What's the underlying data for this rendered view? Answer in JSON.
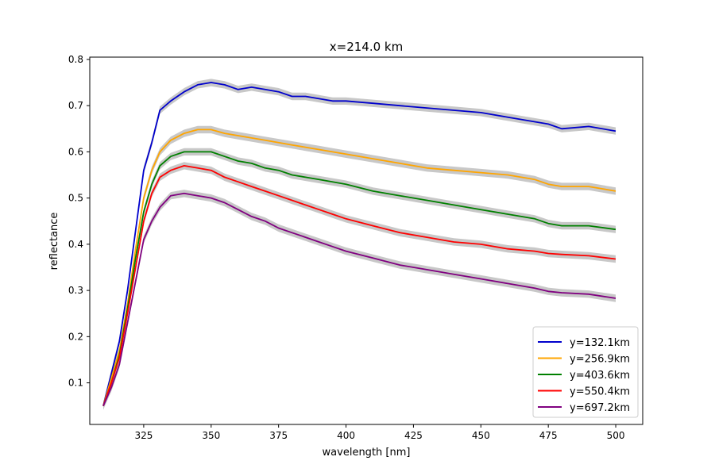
{
  "chart_data": {
    "type": "line",
    "title": "x=214.0 km",
    "xlabel": "wavelength [nm]",
    "ylabel": "reflectance",
    "xlim": [
      305,
      510
    ],
    "ylim": [
      0.01,
      0.805
    ],
    "x_ticks": [
      325,
      350,
      375,
      400,
      425,
      450,
      475,
      500
    ],
    "y_ticks": [
      0.1,
      0.2,
      0.3,
      0.4,
      0.5,
      0.6,
      0.7,
      0.8
    ],
    "x_tick_labels": [
      "325",
      "350",
      "375",
      "400",
      "425",
      "450",
      "475",
      "500"
    ],
    "y_tick_labels": [
      "0.1",
      "0.2",
      "0.3",
      "0.4",
      "0.5",
      "0.6",
      "0.7",
      "0.8"
    ],
    "grid": false,
    "legend_position": "lower-right",
    "uncertainty_band_color": "#c8c8c8",
    "series": [
      {
        "name": "y=132.1km",
        "color": "#0000cc",
        "x": [
          310,
          313,
          316,
          319,
          322,
          325,
          328,
          331,
          335,
          340,
          345,
          350,
          355,
          360,
          365,
          370,
          375,
          380,
          385,
          390,
          395,
          400,
          410,
          420,
          430,
          440,
          450,
          460,
          470,
          475,
          480,
          490,
          500
        ],
        "y": [
          0.05,
          0.12,
          0.19,
          0.3,
          0.43,
          0.56,
          0.62,
          0.69,
          0.71,
          0.73,
          0.745,
          0.75,
          0.745,
          0.735,
          0.74,
          0.735,
          0.73,
          0.72,
          0.72,
          0.715,
          0.71,
          0.71,
          0.705,
          0.7,
          0.695,
          0.69,
          0.685,
          0.675,
          0.665,
          0.66,
          0.65,
          0.655,
          0.645
        ]
      },
      {
        "name": "y=256.9km",
        "color": "#ffa500",
        "x": [
          310,
          313,
          316,
          319,
          322,
          325,
          328,
          331,
          335,
          340,
          345,
          350,
          355,
          360,
          365,
          370,
          375,
          380,
          385,
          390,
          395,
          400,
          410,
          420,
          430,
          440,
          450,
          460,
          470,
          475,
          480,
          490,
          500
        ],
        "y": [
          0.05,
          0.11,
          0.17,
          0.27,
          0.39,
          0.5,
          0.56,
          0.6,
          0.625,
          0.64,
          0.648,
          0.648,
          0.64,
          0.635,
          0.63,
          0.625,
          0.62,
          0.615,
          0.61,
          0.605,
          0.6,
          0.595,
          0.585,
          0.575,
          0.565,
          0.56,
          0.555,
          0.55,
          0.54,
          0.53,
          0.525,
          0.525,
          0.515
        ]
      },
      {
        "name": "y=403.6km",
        "color": "#008000",
        "x": [
          310,
          313,
          316,
          319,
          322,
          325,
          328,
          331,
          335,
          340,
          345,
          350,
          355,
          360,
          365,
          370,
          375,
          380,
          385,
          390,
          395,
          400,
          410,
          420,
          430,
          440,
          450,
          460,
          470,
          475,
          480,
          490,
          500
        ],
        "y": [
          0.05,
          0.1,
          0.16,
          0.26,
          0.37,
          0.47,
          0.53,
          0.57,
          0.59,
          0.6,
          0.6,
          0.6,
          0.59,
          0.58,
          0.575,
          0.565,
          0.56,
          0.55,
          0.545,
          0.54,
          0.535,
          0.53,
          0.515,
          0.505,
          0.495,
          0.485,
          0.475,
          0.465,
          0.455,
          0.445,
          0.44,
          0.44,
          0.432
        ]
      },
      {
        "name": "y=550.4km",
        "color": "#ff0000",
        "x": [
          310,
          313,
          316,
          319,
          322,
          325,
          328,
          331,
          335,
          340,
          345,
          350,
          355,
          360,
          365,
          370,
          375,
          380,
          385,
          390,
          395,
          400,
          410,
          420,
          430,
          440,
          450,
          460,
          470,
          475,
          480,
          490,
          500
        ],
        "y": [
          0.05,
          0.1,
          0.155,
          0.25,
          0.35,
          0.45,
          0.51,
          0.545,
          0.56,
          0.57,
          0.565,
          0.56,
          0.545,
          0.535,
          0.525,
          0.515,
          0.505,
          0.495,
          0.485,
          0.475,
          0.465,
          0.455,
          0.44,
          0.425,
          0.415,
          0.405,
          0.4,
          0.39,
          0.385,
          0.38,
          0.378,
          0.375,
          0.368
        ]
      },
      {
        "name": "y=697.2km",
        "color": "#800080",
        "x": [
          310,
          313,
          316,
          319,
          322,
          325,
          328,
          331,
          335,
          340,
          345,
          350,
          355,
          360,
          365,
          370,
          375,
          380,
          385,
          390,
          395,
          400,
          410,
          420,
          430,
          440,
          450,
          460,
          470,
          475,
          480,
          490,
          500
        ],
        "y": [
          0.05,
          0.09,
          0.14,
          0.23,
          0.32,
          0.41,
          0.45,
          0.48,
          0.505,
          0.51,
          0.505,
          0.5,
          0.49,
          0.475,
          0.46,
          0.45,
          0.435,
          0.425,
          0.415,
          0.405,
          0.395,
          0.385,
          0.37,
          0.355,
          0.345,
          0.335,
          0.325,
          0.315,
          0.305,
          0.298,
          0.295,
          0.292,
          0.283
        ]
      }
    ]
  }
}
